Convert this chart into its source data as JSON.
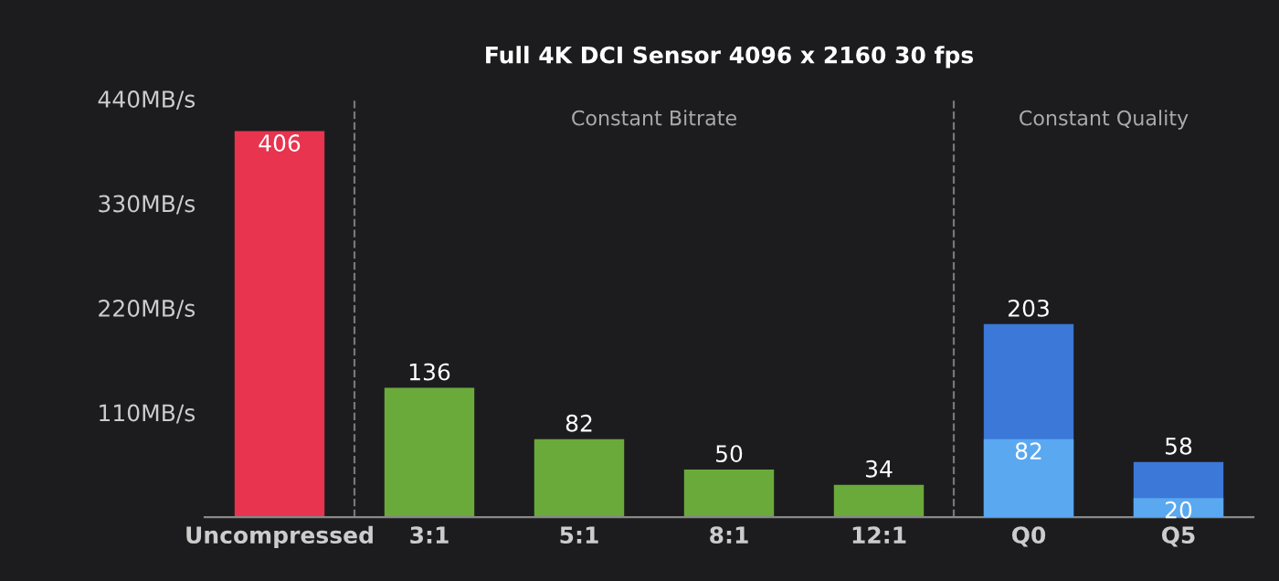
{
  "chart_data": {
    "type": "bar",
    "title": "Full 4K DCI Sensor 4096 x 2160 30 fps",
    "categories": [
      "Uncompressed",
      "3:1",
      "5:1",
      "8:1",
      "12:1",
      "Q0",
      "Q5"
    ],
    "series": [
      {
        "colors": [
          "#e8344e",
          "#6aaa3a",
          "#6aaa3a",
          "#6aaa3a",
          "#6aaa3a",
          "#3b78d8",
          "#3b78d8"
        ],
        "values": [
          406,
          136,
          82,
          50,
          34,
          203,
          58
        ]
      },
      {
        "color": "#5aa8f0",
        "values": [
          null,
          null,
          null,
          null,
          null,
          82,
          20
        ]
      }
    ],
    "data_labels": true,
    "ylim": [
      0,
      440
    ],
    "yticks": [
      {
        "value": 110,
        "label": "110MB/s"
      },
      {
        "value": 220,
        "label": "220MB/s"
      },
      {
        "value": 330,
        "label": "330MB/s"
      },
      {
        "value": 440,
        "label": "440MB/s"
      }
    ],
    "grid": false,
    "annotations": [
      "Constant Bitrate",
      "Constant Quality"
    ]
  }
}
